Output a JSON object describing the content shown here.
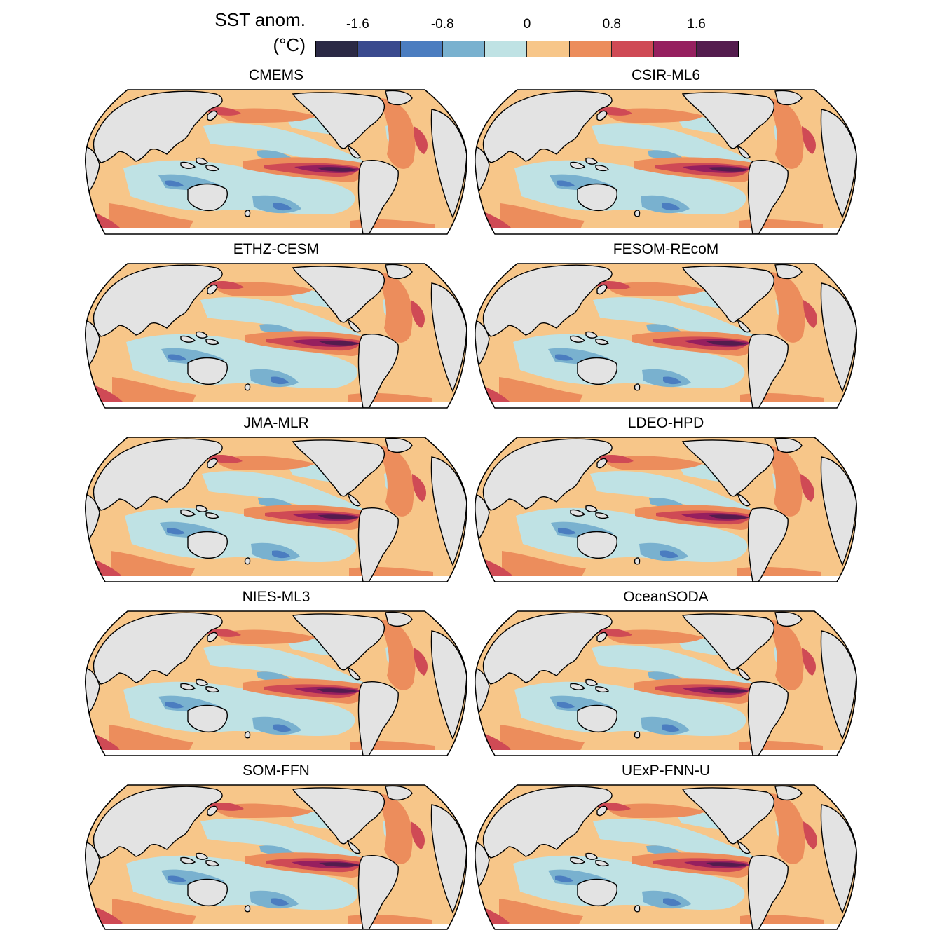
{
  "colorbar": {
    "title_line1": "SST anom.",
    "title_line2": "(°C)",
    "ticks": [
      "-1.6",
      "-0.8",
      "0",
      "0.8",
      "1.6"
    ],
    "tick_values": [
      -1.6,
      -0.8,
      0,
      0.8,
      1.6
    ],
    "range": [
      -2.0,
      2.0
    ],
    "colors": [
      "#2b2945",
      "#3a4a8e",
      "#4b7dc0",
      "#79b1cf",
      "#bfe2e4",
      "#f7c689",
      "#ec8d5c",
      "#cf4a55",
      "#961f5f",
      "#541c4e"
    ]
  },
  "panels": [
    {
      "name": "CMEMS"
    },
    {
      "name": "CSIR-ML6"
    },
    {
      "name": "ETHZ-CESM"
    },
    {
      "name": "FESOM-REcoM"
    },
    {
      "name": "JMA-MLR"
    },
    {
      "name": "LDEO-HPD"
    },
    {
      "name": "NIES-ML3"
    },
    {
      "name": "OceanSODA"
    },
    {
      "name": "SOM-FFN"
    },
    {
      "name": "UExP-FNN-U"
    }
  ],
  "map": {
    "land_color": "#e3e3e3",
    "coast_color": "#000000",
    "projection": "Robinson (Pacific-centered)"
  }
}
